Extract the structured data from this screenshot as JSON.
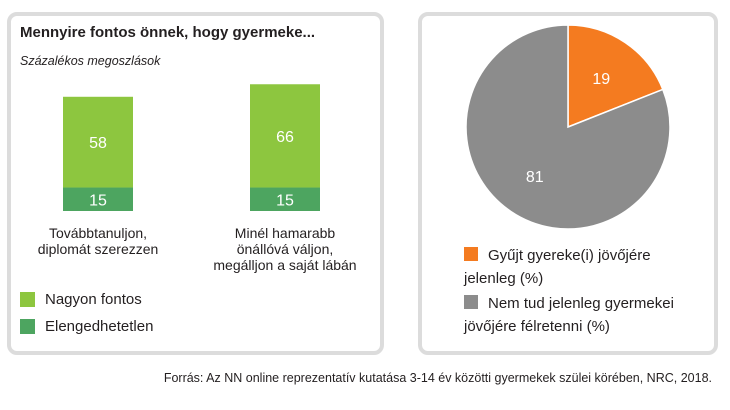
{
  "source": "Forrás: Az NN online reprezentatív kutatása 3-14 év közötti gyermekek szülei körében, NRC, 2018.",
  "chart_data": [
    {
      "type": "bar",
      "stacked": true,
      "title": "Mennyire fontos önnek, hogy gyermeke...",
      "subtitle": "Százalékos megoszlások",
      "categories": [
        [
          "Továbbtanuljon,",
          "diplomát szerezzen"
        ],
        [
          "Minél hamarabb",
          "önállóvá váljon,",
          "megálljon a saját lábán"
        ]
      ],
      "series": [
        {
          "name": "Elengedhetetlen",
          "values": [
            15,
            15
          ],
          "color": "#4da560"
        },
        {
          "name": "Nagyon fontos",
          "values": [
            58,
            66
          ],
          "color": "#8dc63f"
        }
      ],
      "legend": [
        "Nagyon fontos",
        "Elengedhetetlen"
      ],
      "legend_placement": "bottom-left",
      "ylim": [
        0,
        85
      ],
      "grid": false
    },
    {
      "type": "pie",
      "slices": [
        {
          "label": [
            "Gyűjt gyereke(i) jövőjére",
            "jelenleg (%)"
          ],
          "value": 19,
          "color": "#f47b20"
        },
        {
          "label": [
            "Nem tud jelenleg gyermekei",
            "jövőjére félretenni (%)"
          ],
          "value": 81,
          "color": "#8c8c8c"
        }
      ],
      "legend_placement": "bottom"
    }
  ]
}
